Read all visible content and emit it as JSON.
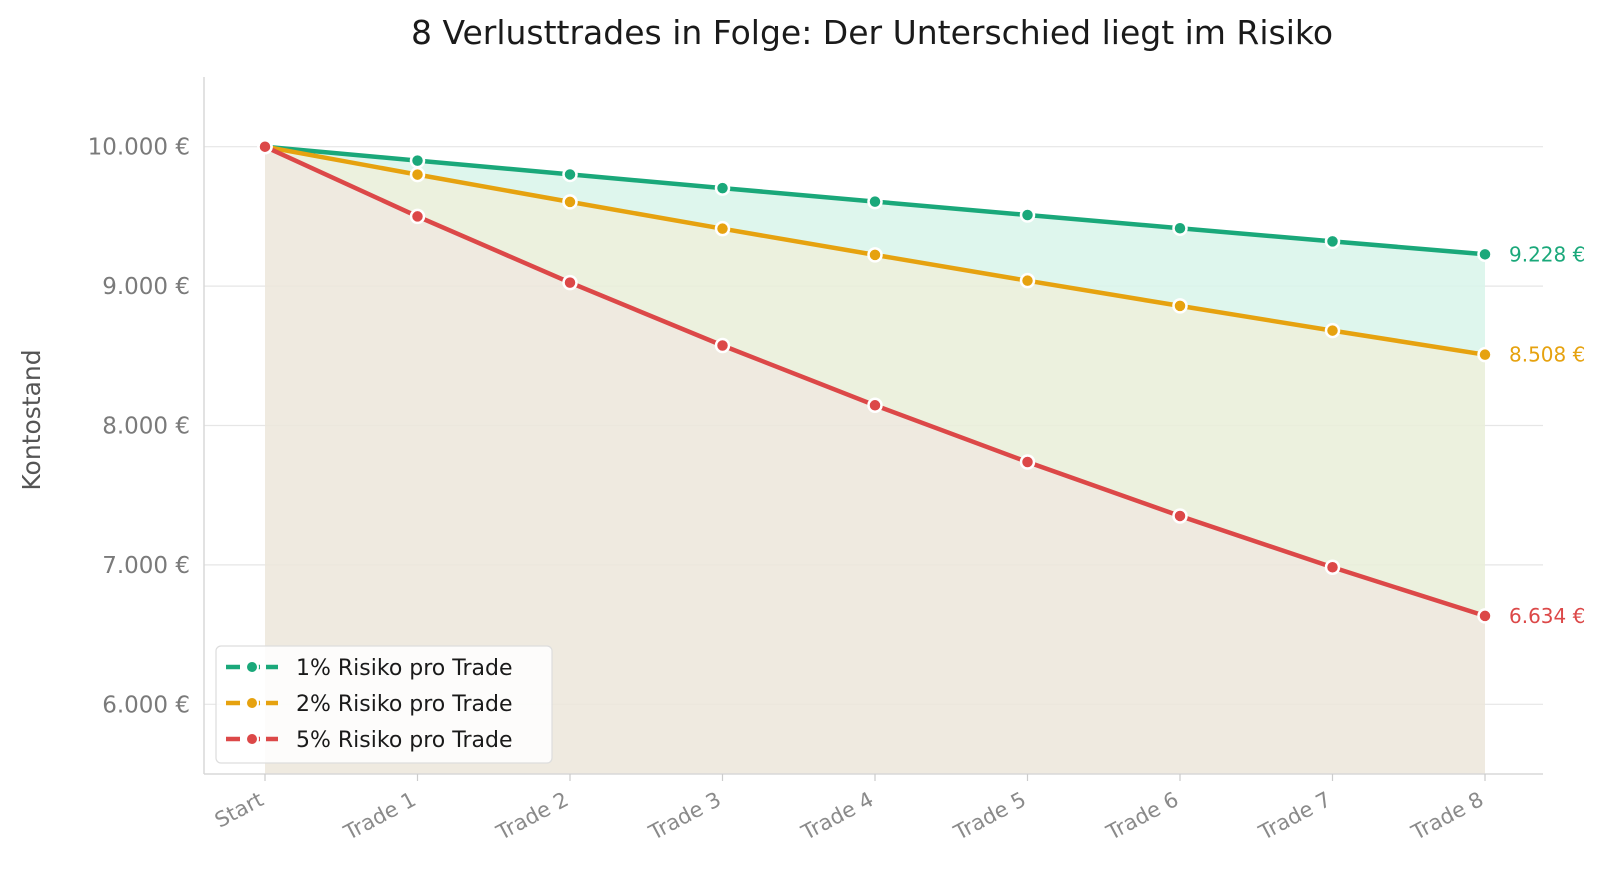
{
  "chart_data": {
    "type": "line",
    "title": "8 Verlusttrades in Folge: Der Unterschied liegt im Risiko",
    "xlabel": "",
    "ylabel": "Kontostand",
    "categories": [
      "Start",
      "Trade 1",
      "Trade 2",
      "Trade 3",
      "Trade 4",
      "Trade 5",
      "Trade 6",
      "Trade 7",
      "Trade 8"
    ],
    "ylim": [
      5500,
      10500
    ],
    "yticks": [
      6000,
      7000,
      8000,
      9000,
      10000
    ],
    "ytick_labels": [
      "6.000 €",
      "7.000 €",
      "8.000 €",
      "9.000 €",
      "10.000 €"
    ],
    "grid": "horizontal",
    "legend_position": "bottom-left",
    "series": [
      {
        "name": "1% Risiko pro Trade",
        "color": "#1aa87a",
        "fill": "#d8f5ea",
        "values": [
          10000,
          9900,
          9801,
          9703,
          9606,
          9510,
          9415,
          9321,
          9228
        ],
        "end_label": "9.228 €"
      },
      {
        "name": "2% Risiko pro Trade",
        "color": "#e6a20f",
        "fill": "#e9efd8",
        "values": [
          10000,
          9800,
          9604,
          9412,
          9224,
          9039,
          8858,
          8681,
          8508
        ],
        "end_label": "8.508 €"
      },
      {
        "name": "5% Risiko pro Trade",
        "color": "#dc4848",
        "fill": "#ece6da",
        "values": [
          10000,
          9500,
          9025,
          8574,
          8145,
          7738,
          7351,
          6983,
          6634
        ],
        "end_label": "6.634 €"
      }
    ]
  }
}
